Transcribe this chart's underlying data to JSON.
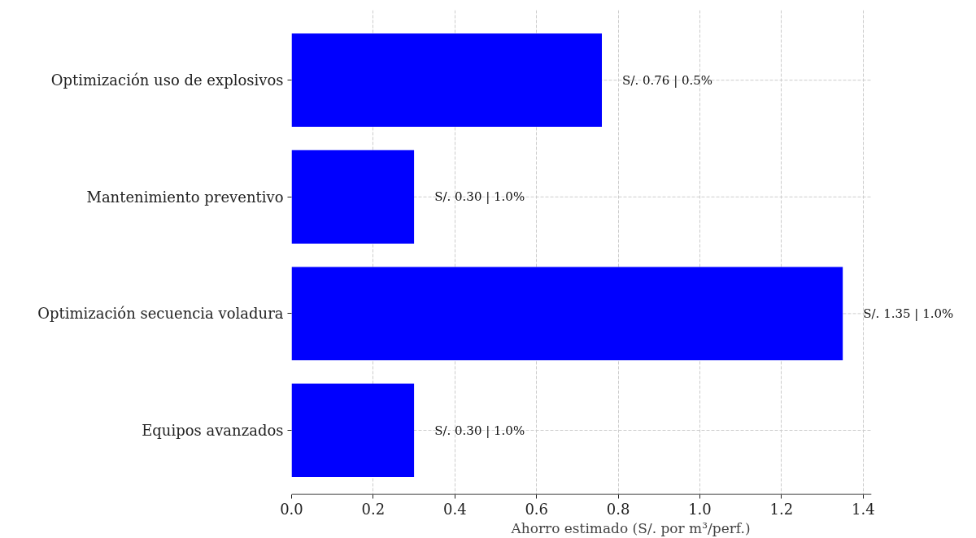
{
  "chart_data": {
    "type": "bar",
    "orientation": "horizontal",
    "xlabel": "Ahorro estimado (S/. por m³/perf.)",
    "categories": [
      "Optimización uso de explosivos",
      "Mantenimiento preventivo",
      "Optimización secuencia voladura",
      "Equipos avanzados"
    ],
    "values": [
      0.76,
      0.3,
      1.35,
      0.3
    ],
    "value_labels": [
      "S/. 0.76 | 0.5%",
      "S/. 0.30 | 1.0%",
      "S/. 1.35 | 1.0%",
      "S/. 0.30 | 1.0%"
    ],
    "color": "#0000ff",
    "xlim": [
      0,
      1.42
    ],
    "xticks": [
      {
        "value": 0,
        "label": "0.0"
      },
      {
        "value": 0.2,
        "label": "0.2"
      },
      {
        "value": 0.4,
        "label": "0.4"
      },
      {
        "value": 0.6,
        "label": "0.6"
      },
      {
        "value": 0.8,
        "label": "0.8"
      },
      {
        "value": 1.0,
        "label": "1.0"
      },
      {
        "value": 1.2,
        "label": "1.2"
      },
      {
        "value": 1.4,
        "label": "1.4"
      }
    ],
    "grid": true
  }
}
